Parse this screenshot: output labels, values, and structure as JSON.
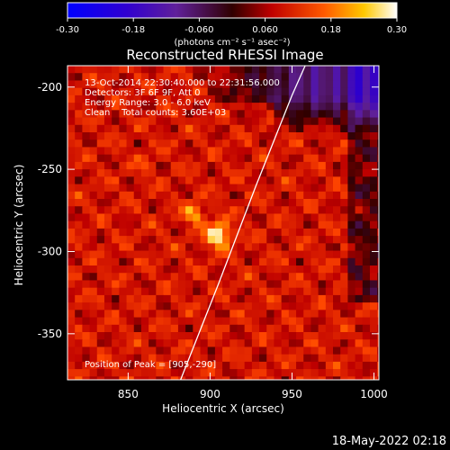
{
  "chart_data": {
    "type": "heatmap",
    "title": "Reconstructed RHESSI Image",
    "colorbar": {
      "ticks": [
        "-0.30",
        "-0.18",
        "-0.060",
        "0.060",
        "0.18",
        "0.30"
      ],
      "range": [
        -0.3,
        0.3
      ],
      "units_line": "(photons cm⁻² s⁻¹ asec⁻²)"
    },
    "xlabel": "Heliocentric X (arcsec)",
    "ylabel": "Heliocentric Y (arcsec)",
    "xlim": [
      813,
      1003
    ],
    "ylim": [
      -378,
      -187
    ],
    "x_ticks": [
      "850",
      "900",
      "950",
      "1000"
    ],
    "x_tick_values": [
      850,
      900,
      950,
      1000
    ],
    "y_ticks": [
      "-200",
      "-250",
      "-300",
      "-350"
    ],
    "y_tick_values": [
      -200,
      -250,
      -300,
      -350
    ],
    "info_lines": [
      "13-Oct-2014 22:30:40.000 to 22:31:56.000",
      "Detectors: 3F 6F 9F, Att 0",
      "Energy Range: 3.0 - 6.0 keV",
      "Clean    Total counts: 3.60E+03"
    ],
    "peak_label": "Position of Peak = [905,-290]",
    "peak": {
      "x": 905,
      "y": -290,
      "value": 0.3
    },
    "secondary_sources": [
      {
        "x": 890,
        "y": -277,
        "value": 0.2
      },
      {
        "x": 860,
        "y": -247,
        "value": 0.1
      }
    ],
    "negative_region": {
      "x_range": [
        890,
        1003
      ],
      "y_range": [
        -187,
        -230
      ],
      "min_value": -0.25
    },
    "limb_curve": [
      [
        882,
        -378
      ],
      [
        905,
        -320
      ],
      [
        928,
        -260
      ],
      [
        950,
        -205
      ],
      [
        958,
        -187
      ]
    ]
  },
  "footer": {
    "date": "18-May-2022 02:18"
  }
}
